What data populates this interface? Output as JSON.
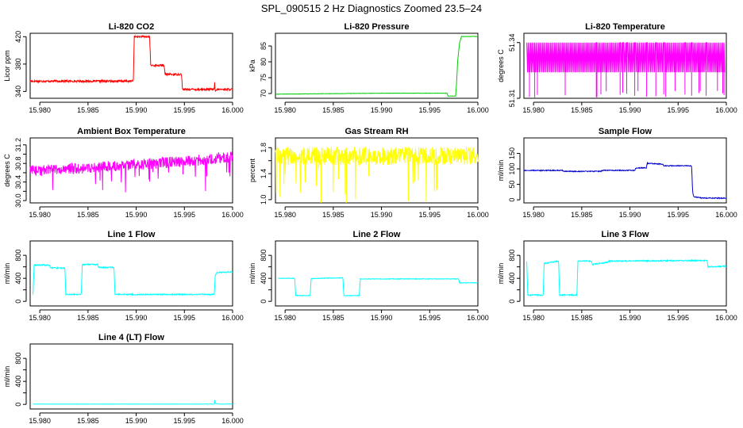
{
  "figure_title": "SPL_090515  2 Hz Diagnostics Zoomed 23.5–24",
  "chart_data": [
    {
      "type": "line",
      "title": "Li-820 CO2",
      "ylabel": "Licor ppm",
      "color": "#ff0000",
      "xlim": [
        15.979,
        16.0
      ],
      "ylim": [
        330,
        425
      ],
      "xticks": [
        15.98,
        15.985,
        15.99,
        15.995,
        16.0
      ],
      "xtick_labels": [
        "15.980",
        "15.985",
        "15.990",
        "15.995",
        "16.000"
      ],
      "yticks": [
        340,
        380,
        420
      ],
      "ytick_labels": [
        "340",
        "380",
        "420"
      ],
      "noise": 1.5,
      "points": [
        [
          15.979,
          355
        ],
        [
          15.9897,
          355
        ],
        [
          15.9898,
          420
        ],
        [
          15.9914,
          420
        ],
        [
          15.9915,
          378
        ],
        [
          15.9929,
          378
        ],
        [
          15.993,
          365
        ],
        [
          15.9947,
          365
        ],
        [
          15.9948,
          343
        ],
        [
          15.9981,
          343
        ],
        [
          15.99812,
          358
        ],
        [
          15.99818,
          340
        ],
        [
          15.9984,
          343
        ],
        [
          16.0,
          343
        ]
      ]
    },
    {
      "type": "line",
      "title": "Li-820 Pressure",
      "ylabel": "kPa",
      "color": "#00cc00",
      "xlim": [
        15.979,
        16.0
      ],
      "ylim": [
        68.5,
        89
      ],
      "xticks": [
        15.98,
        15.985,
        15.99,
        15.995,
        16.0
      ],
      "xtick_labels": [
        "15.980",
        "15.985",
        "15.990",
        "15.995",
        "16.000"
      ],
      "yticks": [
        70,
        75,
        80,
        85
      ],
      "ytick_labels": [
        "70",
        "75",
        "80",
        "85"
      ],
      "noise": 0.05,
      "points": [
        [
          15.979,
          69.8
        ],
        [
          15.99,
          70.1
        ],
        [
          15.9968,
          70.1
        ],
        [
          15.9969,
          69.2
        ],
        [
          15.9977,
          69.2
        ],
        [
          15.9978,
          74
        ],
        [
          15.9979,
          80
        ],
        [
          15.998,
          83
        ],
        [
          15.9981,
          86
        ],
        [
          15.9983,
          88
        ],
        [
          16.0,
          88
        ]
      ]
    },
    {
      "type": "line",
      "title": "Li-820 Temperature",
      "ylabel": "degrees C",
      "color": "#ff00ff",
      "xlim": [
        15.979,
        16.0
      ],
      "ylim": [
        51.31,
        51.345
      ],
      "xticks": [
        15.98,
        15.985,
        15.99,
        15.995,
        16.0
      ],
      "xtick_labels": [
        "15.980",
        "15.985",
        "15.990",
        "15.995",
        "16.000"
      ],
      "yticks": [
        51.31,
        51.34
      ],
      "ytick_labels": [
        "51.31",
        "51.34"
      ],
      "noise": 0,
      "points": [
        [
          15.979,
          51.324
        ],
        [
          16.0,
          51.324
        ]
      ]
    },
    {
      "type": "line",
      "title": "Ambient Box Temperature",
      "ylabel": "degrees C",
      "color": "#ff00ff",
      "xlim": [
        15.979,
        16.0
      ],
      "ylim": [
        29.95,
        31.35
      ],
      "xticks": [
        15.98,
        15.985,
        15.99,
        15.995,
        16.0
      ],
      "xtick_labels": [
        "15.980",
        "15.985",
        "15.990",
        "15.995",
        "16.000"
      ],
      "yticks": [
        30.0,
        30.2,
        30.4,
        30.6,
        30.8,
        31.0,
        31.2
      ],
      "ytick_labels": [
        "30.0",
        "",
        "30.4",
        "",
        "30.8",
        "",
        "31.2"
      ],
      "noise": 0.12,
      "points": [
        [
          15.979,
          30.65
        ],
        [
          15.985,
          30.7
        ],
        [
          15.99,
          30.78
        ],
        [
          15.995,
          30.84
        ],
        [
          16.0,
          30.95
        ]
      ]
    },
    {
      "type": "line",
      "title": "Gas Stream RH",
      "ylabel": "percent",
      "color": "#ffff00",
      "xlim": [
        15.979,
        16.0
      ],
      "ylim": [
        0.95,
        1.95
      ],
      "xticks": [
        15.98,
        15.985,
        15.99,
        15.995,
        16.0
      ],
      "xtick_labels": [
        "15.980",
        "15.985",
        "15.990",
        "15.995",
        "16.000"
      ],
      "yticks": [
        1.0,
        1.2,
        1.4,
        1.6,
        1.8
      ],
      "ytick_labels": [
        "1.0",
        "",
        "1.4",
        "",
        "1.8"
      ],
      "noise": 0.14,
      "points": [
        [
          15.979,
          1.67
        ],
        [
          16.0,
          1.68
        ]
      ]
    },
    {
      "type": "line",
      "title": "Sample Flow",
      "ylabel": "ml/min",
      "color": "#0000cc",
      "xlim": [
        15.979,
        16.0
      ],
      "ylim": [
        -10,
        200
      ],
      "xticks": [
        15.98,
        15.985,
        15.99,
        15.995,
        16.0
      ],
      "xtick_labels": [
        "15.980",
        "15.985",
        "15.990",
        "15.995",
        "16.000"
      ],
      "yticks": [
        0,
        50,
        100,
        150
      ],
      "ytick_labels": [
        "0",
        "50",
        "100",
        "150"
      ],
      "noise": 1.5,
      "points": [
        [
          15.979,
          95
        ],
        [
          15.983,
          95
        ],
        [
          15.9831,
          92
        ],
        [
          15.987,
          92
        ],
        [
          15.9871,
          95
        ],
        [
          15.9905,
          95
        ],
        [
          15.9906,
          103
        ],
        [
          15.9917,
          103
        ],
        [
          15.9918,
          118
        ],
        [
          15.9934,
          115
        ],
        [
          15.9935,
          110
        ],
        [
          15.9964,
          110
        ],
        [
          15.9965,
          30
        ],
        [
          15.9966,
          10
        ],
        [
          15.9975,
          6
        ],
        [
          16.0,
          5
        ]
      ]
    },
    {
      "type": "line",
      "title": "Line 1 Flow",
      "ylabel": "ml/min",
      "color": "#00ffff",
      "xlim": [
        15.979,
        16.0
      ],
      "ylim": [
        -80,
        1050
      ],
      "xticks": [
        15.98,
        15.985,
        15.99,
        15.995,
        16.0
      ],
      "xtick_labels": [
        "15.980",
        "15.985",
        "15.990",
        "15.995",
        "16.000"
      ],
      "yticks": [
        0,
        200,
        400,
        600,
        800
      ],
      "ytick_labels": [
        "0",
        "",
        "400",
        "",
        "800"
      ],
      "noise": 10,
      "points": [
        [
          15.9793,
          120
        ],
        [
          15.9794,
          630
        ],
        [
          15.981,
          630
        ],
        [
          15.9811,
          580
        ],
        [
          15.9826,
          580
        ],
        [
          15.9827,
          120
        ],
        [
          15.9843,
          120
        ],
        [
          15.9844,
          640
        ],
        [
          15.986,
          640
        ],
        [
          15.9861,
          590
        ],
        [
          15.9877,
          590
        ],
        [
          15.9878,
          120
        ],
        [
          15.9981,
          120
        ],
        [
          15.9982,
          450
        ],
        [
          15.9984,
          500
        ],
        [
          16.0,
          510
        ]
      ]
    },
    {
      "type": "line",
      "title": "Line 2 Flow",
      "ylabel": "ml/min",
      "color": "#00ffff",
      "xlim": [
        15.979,
        16.0
      ],
      "ylim": [
        -80,
        1050
      ],
      "xticks": [
        15.98,
        15.985,
        15.99,
        15.995,
        16.0
      ],
      "xtick_labels": [
        "15.980",
        "15.985",
        "15.990",
        "15.995",
        "16.000"
      ],
      "yticks": [
        0,
        200,
        400,
        600,
        800
      ],
      "ytick_labels": [
        "0",
        "",
        "400",
        "",
        "800"
      ],
      "noise": 5,
      "points": [
        [
          15.9793,
          400
        ],
        [
          15.981,
          400
        ],
        [
          15.9811,
          100
        ],
        [
          15.9826,
          100
        ],
        [
          15.9827,
          395
        ],
        [
          15.986,
          410
        ],
        [
          15.9861,
          100
        ],
        [
          15.9877,
          100
        ],
        [
          15.9878,
          390
        ],
        [
          15.998,
          390
        ],
        [
          15.9981,
          320
        ],
        [
          16.0,
          325
        ]
      ]
    },
    {
      "type": "line",
      "title": "Line 3 Flow",
      "ylabel": "ml/min",
      "color": "#00ffff",
      "xlim": [
        15.979,
        16.0
      ],
      "ylim": [
        -80,
        1050
      ],
      "xticks": [
        15.98,
        15.985,
        15.99,
        15.995,
        16.0
      ],
      "xtick_labels": [
        "15.980",
        "15.985",
        "15.990",
        "15.995",
        "16.000"
      ],
      "yticks": [
        0,
        200,
        400,
        600,
        800
      ],
      "ytick_labels": [
        "0",
        "",
        "400",
        "",
        "800"
      ],
      "noise": 10,
      "points": [
        [
          15.9793,
          700
        ],
        [
          15.9794,
          110
        ],
        [
          15.981,
          110
        ],
        [
          15.9811,
          660
        ],
        [
          15.9826,
          700
        ],
        [
          15.9827,
          110
        ],
        [
          15.9845,
          110
        ],
        [
          15.9846,
          700
        ],
        [
          15.986,
          700
        ],
        [
          15.9861,
          640
        ],
        [
          15.9877,
          680
        ],
        [
          15.9878,
          700
        ],
        [
          15.998,
          710
        ],
        [
          15.9981,
          600
        ],
        [
          16.0,
          610
        ]
      ]
    },
    {
      "type": "line",
      "title": "Line 4 (LT) Flow",
      "ylabel": "ml/min",
      "color": "#00ffff",
      "xlim": [
        15.979,
        16.0
      ],
      "ylim": [
        -80,
        1050
      ],
      "xticks": [
        15.98,
        15.985,
        15.99,
        15.995,
        16.0
      ],
      "xtick_labels": [
        "15.980",
        "15.985",
        "15.990",
        "15.995",
        "16.000"
      ],
      "yticks": [
        0,
        200,
        400,
        600,
        800
      ],
      "ytick_labels": [
        "0",
        "",
        "400",
        "",
        "800"
      ],
      "noise": 2,
      "points": [
        [
          15.9793,
          5
        ],
        [
          15.9981,
          5
        ],
        [
          15.99815,
          90
        ],
        [
          15.9982,
          20
        ],
        [
          15.9985,
          5
        ],
        [
          16.0,
          5
        ]
      ]
    }
  ]
}
